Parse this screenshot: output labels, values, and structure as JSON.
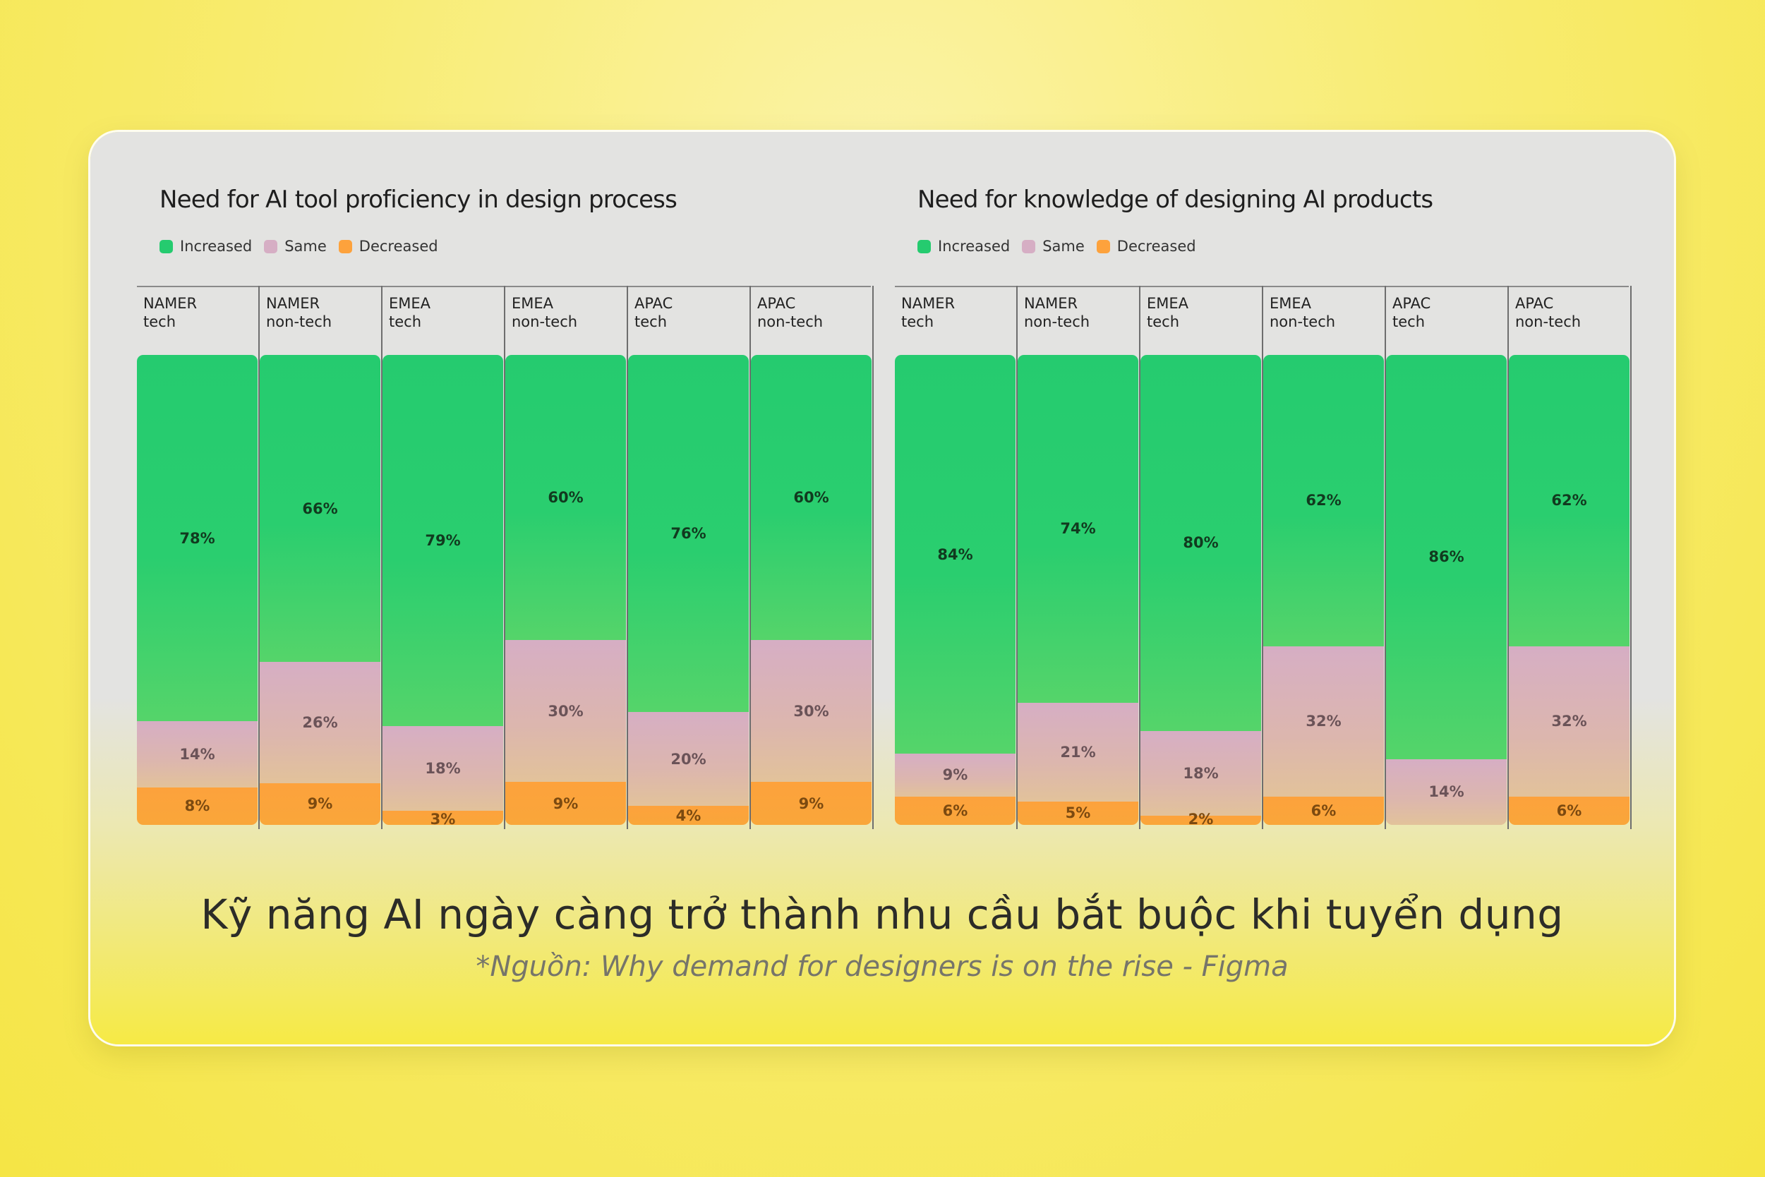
{
  "colors": {
    "increased": "#25cb6f",
    "same": "#d6aec4",
    "decreased": "#fda23c"
  },
  "legend": {
    "increased": "Increased",
    "same": "Same",
    "decreased": "Decreased"
  },
  "headline": "Kỹ năng AI ngày càng trở thành nhu cầu bắt buộc khi tuyển dụng",
  "source": "*Nguồn: Why demand for designers is on the rise - Figma",
  "chart_data": [
    {
      "type": "bar",
      "stacked": true,
      "title": "Need for AI tool proficiency in design process",
      "categories": [
        "NAMER\ntech",
        "NAMER\nnon-tech",
        "EMEA\ntech",
        "EMEA\nnon-tech",
        "APAC\ntech",
        "APAC\nnon-tech"
      ],
      "series": [
        {
          "name": "Increased",
          "values": [
            78,
            66,
            79,
            60,
            76,
            60
          ]
        },
        {
          "name": "Same",
          "values": [
            14,
            26,
            18,
            30,
            20,
            30
          ]
        },
        {
          "name": "Decreased",
          "values": [
            8,
            9,
            3,
            9,
            4,
            9
          ]
        }
      ],
      "legend_position": "top-left",
      "ylim": [
        0,
        100
      ]
    },
    {
      "type": "bar",
      "stacked": true,
      "title": "Need for knowledge of designing AI products",
      "categories": [
        "NAMER\ntech",
        "NAMER\nnon-tech",
        "EMEA\ntech",
        "EMEA\nnon-tech",
        "APAC\ntech",
        "APAC\nnon-tech"
      ],
      "series": [
        {
          "name": "Increased",
          "values": [
            84,
            74,
            80,
            62,
            86,
            62
          ]
        },
        {
          "name": "Same",
          "values": [
            9,
            21,
            18,
            32,
            14,
            32
          ]
        },
        {
          "name": "Decreased",
          "values": [
            6,
            5,
            2,
            6,
            null,
            6
          ]
        }
      ],
      "legend_position": "top-left",
      "ylim": [
        0,
        100
      ]
    }
  ]
}
